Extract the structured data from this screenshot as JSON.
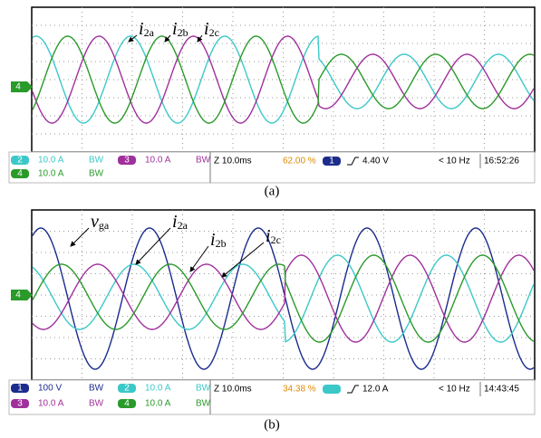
{
  "panels": [
    {
      "caption": "(a)",
      "ground_marker": "4",
      "annotations": [
        {
          "main": "i",
          "sub": "2a"
        },
        {
          "main": "i",
          "sub": "2b"
        },
        {
          "main": "i",
          "sub": "2c"
        }
      ],
      "status": {
        "channels": [
          {
            "number": "2",
            "scale": "10.0 A",
            "bw": "BW"
          },
          {
            "number": "3",
            "scale": "10.0 A",
            "bw": "BW"
          },
          {
            "number": "4",
            "scale": "10.0 A",
            "bw": "BW"
          }
        ],
        "timebase": "Z 10.0ms",
        "position": "62.00 %",
        "trigger_channel": "1",
        "trigger_level": "4.40 V",
        "frequency": "< 10 Hz",
        "time": "16:52:26"
      }
    },
    {
      "caption": "(b)",
      "ground_marker": "4",
      "annotations": [
        {
          "main": "v",
          "sub": "ga"
        },
        {
          "main": "i",
          "sub": "2a"
        },
        {
          "main": "i",
          "sub": "2b"
        },
        {
          "main": "i",
          "sub": "2c"
        }
      ],
      "status": {
        "channels": [
          {
            "number": "1",
            "scale": "100 V",
            "bw": "BW"
          },
          {
            "number": "2",
            "scale": "10.0 A",
            "bw": "BW"
          },
          {
            "number": "3",
            "scale": "10.0 A",
            "bw": "BW"
          },
          {
            "number": "4",
            "scale": "10.0 A",
            "bw": "BW"
          }
        ],
        "timebase": "Z 10.0ms",
        "position": "34.38 %",
        "trigger_level": "12.0 A",
        "frequency": "< 10 Hz",
        "time": "14:43:45"
      }
    }
  ]
}
